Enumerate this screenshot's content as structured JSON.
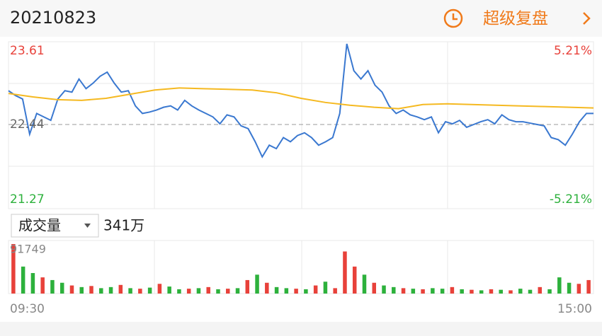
{
  "header": {
    "date": "20210823",
    "action": "超级复盘"
  },
  "volume_header": {
    "label": "成交量",
    "total": "341万"
  },
  "chart_data": [
    {
      "type": "line",
      "ylim": [
        21.27,
        23.61
      ],
      "yticks": [
        23.61,
        22.44,
        21.27
      ],
      "ytick_colors": [
        "#e8413a",
        "#666666",
        "#2db13c"
      ],
      "y2lim": [
        -5.21,
        5.21
      ],
      "y2ticks": [
        {
          "value": 5.21,
          "label": "5.21%"
        },
        {
          "value": -5.21,
          "label": "-5.21%"
        }
      ],
      "y2tick_colors": [
        "#e8413a",
        "#2db13c"
      ],
      "reference": 22.44,
      "series": [
        {
          "color": "#3a78d0",
          "values": [
            22.93,
            22.86,
            22.81,
            22.3,
            22.6,
            22.55,
            22.5,
            22.81,
            22.93,
            22.91,
            23.1,
            22.96,
            23.04,
            23.14,
            23.2,
            23.04,
            22.91,
            22.93,
            22.71,
            22.6,
            22.62,
            22.65,
            22.69,
            22.71,
            22.65,
            22.79,
            22.71,
            22.65,
            22.6,
            22.55,
            22.45,
            22.58,
            22.55,
            22.42,
            22.38,
            22.19,
            21.97,
            22.14,
            22.09,
            22.25,
            22.19,
            22.28,
            22.32,
            22.25,
            22.14,
            22.19,
            22.25,
            22.6,
            23.61,
            23.22,
            23.1,
            23.22,
            23.01,
            22.91,
            22.71,
            22.6,
            22.65,
            22.58,
            22.55,
            22.51,
            22.55,
            22.32,
            22.48,
            22.45,
            22.5,
            22.4,
            22.44,
            22.48,
            22.51,
            22.45,
            22.58,
            22.51,
            22.48,
            22.48,
            22.46,
            22.44,
            22.42,
            22.25,
            22.22,
            22.14,
            22.3,
            22.48,
            22.6,
            22.6
          ]
        },
        {
          "color": "#f5b921",
          "values": [
            22.89,
            22.84,
            22.8,
            22.79,
            22.82,
            22.88,
            22.94,
            22.97,
            22.96,
            22.95,
            22.94,
            22.9,
            22.82,
            22.76,
            22.72,
            22.69,
            22.67,
            22.73,
            22.74,
            22.73,
            22.72,
            22.71,
            22.7,
            22.69,
            22.68
          ]
        }
      ]
    },
    {
      "type": "bar",
      "ylim": [
        0,
        91749
      ],
      "yticks": [
        91749
      ],
      "x_labels": [
        "09:30",
        "15:00"
      ],
      "values": [
        91749,
        50000,
        38000,
        30000,
        25000,
        20000,
        15000,
        12000,
        14000,
        10000,
        12000,
        16000,
        10000,
        9000,
        11000,
        18000,
        13000,
        8000,
        9000,
        10000,
        12000,
        8000,
        9000,
        10000,
        25000,
        35000,
        20000,
        12000,
        10000,
        9000,
        8000,
        15000,
        22000,
        10000,
        78000,
        50000,
        35000,
        20000,
        15000,
        12000,
        10000,
        9000,
        8000,
        10000,
        9000,
        12000,
        8000,
        7000,
        6000,
        8000,
        7000,
        6000,
        9000,
        7000,
        12000,
        8000,
        30000,
        20000,
        18000,
        25000
      ],
      "colors": [
        "#e8413a",
        "#2db13c",
        "#2db13c",
        "#e8413a",
        "#2db13c",
        "#2db13c",
        "#e8413a",
        "#2db13c",
        "#e8413a",
        "#2db13c",
        "#2db13c",
        "#e8413a",
        "#2db13c",
        "#e8413a",
        "#2db13c",
        "#e8413a",
        "#2db13c",
        "#2db13c",
        "#e8413a",
        "#2db13c",
        "#e8413a",
        "#2db13c",
        "#e8413a",
        "#2db13c",
        "#e8413a",
        "#2db13c",
        "#e8413a",
        "#2db13c",
        "#2db13c",
        "#e8413a",
        "#2db13c",
        "#e8413a",
        "#2db13c",
        "#e8413a",
        "#e8413a",
        "#e8413a",
        "#2db13c",
        "#e8413a",
        "#2db13c",
        "#2db13c",
        "#e8413a",
        "#2db13c",
        "#e8413a",
        "#2db13c",
        "#2db13c",
        "#e8413a",
        "#2db13c",
        "#e8413a",
        "#2db13c",
        "#e8413a",
        "#2db13c",
        "#e8413a",
        "#2db13c",
        "#2db13c",
        "#e8413a",
        "#2db13c",
        "#2db13c",
        "#2db13c",
        "#e8413a",
        "#e8413a"
      ]
    }
  ]
}
